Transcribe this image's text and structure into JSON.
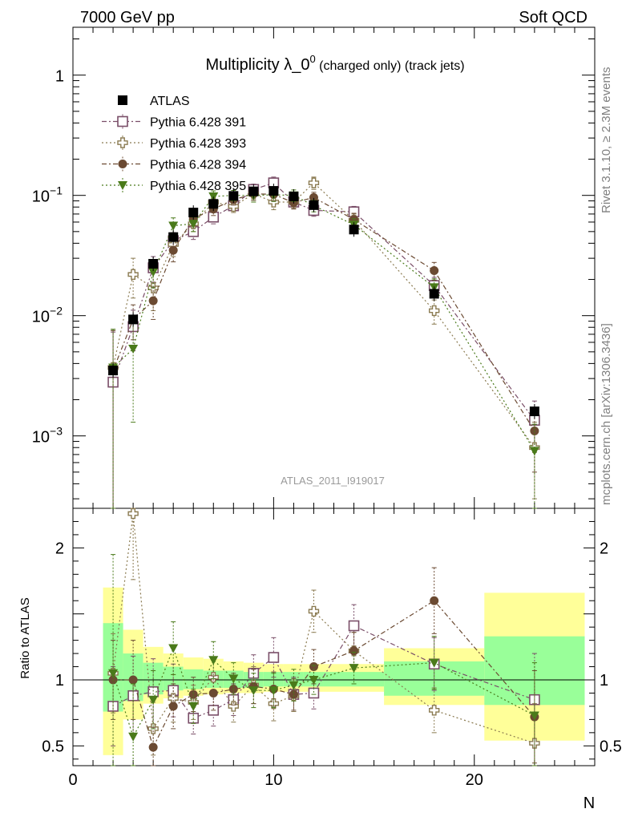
{
  "header": {
    "left": "7000 GeV pp",
    "right": "Soft QCD"
  },
  "side_labels": {
    "rivet": "Rivet 3.1.10, ≥ 2.3M events",
    "mcplots": "mcplots.cern.ch [arXiv:1306.3436]"
  },
  "chart_data": {
    "type": "scatter",
    "title_main": "Multiplicity λ_0",
    "title_sup": "0",
    "title_sub": " (charged only) (track jets)",
    "analysis_id": "ATLAS_2011_I919017",
    "xlabel": "N",
    "ylabel": "",
    "ratio_ylabel": "Ratio to ATLAS",
    "xlim": [
      0,
      26
    ],
    "ylim": [
      0.00025,
      2.5
    ],
    "yscale": "log",
    "ratio_ylim": [
      0.35,
      2.3
    ],
    "x_ticks": [
      0,
      10,
      20
    ],
    "x_tick_labels": [
      "0",
      "10",
      "20"
    ],
    "y_ticks": [
      0.001,
      0.01,
      0.1,
      1
    ],
    "y_tick_labels": [
      {
        "base": "10",
        "exp": "−3",
        "value": 0.001
      },
      {
        "base": "10",
        "exp": "−2",
        "value": 0.01
      },
      {
        "base": "10",
        "exp": "−1",
        "value": 0.1
      },
      {
        "base": "1",
        "exp": "",
        "value": 1
      }
    ],
    "ratio_ticks": [
      0.5,
      1,
      2
    ],
    "ratio_tick_labels": [
      "0.5",
      "1",
      "2"
    ],
    "legend_position": "top-left",
    "data": {
      "name": "ATLAS",
      "color": "#000000",
      "x": [
        2,
        3,
        4,
        5,
        6,
        7,
        8,
        9,
        10,
        11,
        12,
        14,
        18,
        23
      ],
      "y": [
        0.0035,
        0.0093,
        0.027,
        0.045,
        0.072,
        0.085,
        0.099,
        0.108,
        0.109,
        0.098,
        0.083,
        0.052,
        0.0152,
        0.0016
      ]
    },
    "bands": [
      {
        "x0": 1.5,
        "x1": 2.5,
        "yellow": [
          0.43,
          1.7
        ],
        "green": [
          0.76,
          1.43
        ]
      },
      {
        "x0": 2.5,
        "x1": 3.5,
        "yellow": [
          0.7,
          1.38
        ],
        "green": [
          0.84,
          1.2
        ]
      },
      {
        "x0": 3.5,
        "x1": 4.5,
        "yellow": [
          0.82,
          1.25
        ],
        "green": [
          0.89,
          1.13
        ]
      },
      {
        "x0": 4.5,
        "x1": 5.5,
        "yellow": [
          0.86,
          1.2
        ],
        "green": [
          0.92,
          1.1
        ]
      },
      {
        "x0": 5.5,
        "x1": 6.5,
        "yellow": [
          0.88,
          1.17
        ],
        "green": [
          0.93,
          1.08
        ]
      },
      {
        "x0": 6.5,
        "x1": 7.5,
        "yellow": [
          0.89,
          1.16
        ],
        "green": [
          0.94,
          1.07
        ]
      },
      {
        "x0": 7.5,
        "x1": 8.5,
        "yellow": [
          0.9,
          1.14
        ],
        "green": [
          0.94,
          1.07
        ]
      },
      {
        "x0": 8.5,
        "x1": 9.5,
        "yellow": [
          0.9,
          1.13
        ],
        "green": [
          0.94,
          1.06
        ]
      },
      {
        "x0": 9.5,
        "x1": 10.5,
        "yellow": [
          0.91,
          1.12
        ],
        "green": [
          0.95,
          1.06
        ]
      },
      {
        "x0": 10.5,
        "x1": 11.5,
        "yellow": [
          0.91,
          1.12
        ],
        "green": [
          0.95,
          1.06
        ]
      },
      {
        "x0": 11.5,
        "x1": 12.5,
        "yellow": [
          0.91,
          1.12
        ],
        "green": [
          0.95,
          1.06
        ]
      },
      {
        "x0": 12.5,
        "x1": 15.5,
        "yellow": [
          0.91,
          1.12
        ],
        "green": [
          0.95,
          1.06
        ]
      },
      {
        "x0": 15.5,
        "x1": 20.5,
        "yellow": [
          0.81,
          1.24
        ],
        "green": [
          0.88,
          1.14
        ]
      },
      {
        "x0": 20.5,
        "x1": 25.5,
        "yellow": [
          0.54,
          1.66
        ],
        "green": [
          0.81,
          1.33
        ]
      }
    ],
    "series": [
      {
        "name": "Pythia 6.428 391",
        "color": "#7a4e68",
        "marker": "open-square",
        "dash": "6,3,2,3",
        "x": [
          2,
          3,
          4,
          5,
          6,
          7,
          8,
          9,
          10,
          11,
          12,
          14,
          18,
          23
        ],
        "y": [
          0.0028,
          0.0081,
          0.025,
          0.042,
          0.05,
          0.066,
          0.082,
          0.112,
          0.127,
          0.088,
          0.075,
          0.073,
          0.0178,
          0.00135
        ],
        "ratio": [
          0.8,
          0.88,
          0.91,
          0.92,
          0.71,
          0.77,
          0.85,
          1.05,
          1.17,
          0.89,
          0.9,
          1.41,
          1.12,
          0.85
        ],
        "yerr": [
          0.0045,
          0.003,
          0.006,
          0.007,
          0.007,
          0.008,
          0.008,
          0.012,
          0.015,
          0.01,
          0.008,
          0.008,
          0.003,
          0.0006
        ],
        "ratio_err": [
          0.3,
          0.3,
          0.25,
          0.2,
          0.12,
          0.12,
          0.12,
          0.14,
          0.15,
          0.13,
          0.12,
          0.16,
          0.2,
          0.35
        ]
      },
      {
        "name": "Pythia 6.428 393",
        "color": "#8a7a50",
        "marker": "open-cross",
        "dash": "2,3",
        "x": [
          2,
          3,
          4,
          5,
          6,
          7,
          8,
          9,
          10,
          11,
          12,
          14,
          18,
          23
        ],
        "y": [
          0.0037,
          0.022,
          0.017,
          0.039,
          0.058,
          0.088,
          0.081,
          0.103,
          0.088,
          0.088,
          0.127,
          0.062,
          0.011,
          0.0008
        ],
        "ratio": [
          1.05,
          2.26,
          0.63,
          0.86,
          0.83,
          1.02,
          0.8,
          0.96,
          0.82,
          0.88,
          1.52,
          1.22,
          0.77,
          0.52
        ],
        "yerr": [
          0.004,
          0.008,
          0.006,
          0.008,
          0.008,
          0.01,
          0.009,
          0.012,
          0.012,
          0.01,
          0.015,
          0.008,
          0.0025,
          0.0005
        ],
        "ratio_err": [
          0.3,
          0.5,
          0.2,
          0.18,
          0.13,
          0.13,
          0.12,
          0.14,
          0.13,
          0.12,
          0.16,
          0.14,
          0.17,
          0.3
        ]
      },
      {
        "name": "Pythia 6.428 394",
        "color": "#6b4a32",
        "marker": "filled-circle",
        "dash": "6,3,2,3",
        "x": [
          2,
          3,
          4,
          5,
          6,
          7,
          8,
          9,
          10,
          11,
          12,
          14,
          18,
          23
        ],
        "y": [
          0.0035,
          0.0093,
          0.0133,
          0.035,
          0.064,
          0.077,
          0.092,
          0.103,
          0.102,
          0.087,
          0.096,
          0.063,
          0.0237,
          0.0011
        ],
        "ratio": [
          1.0,
          1.0,
          0.49,
          0.8,
          0.89,
          0.9,
          0.93,
          0.95,
          0.93,
          0.89,
          1.1,
          1.22,
          1.6,
          0.72
        ],
        "yerr": [
          0.004,
          0.003,
          0.004,
          0.007,
          0.008,
          0.009,
          0.009,
          0.012,
          0.012,
          0.01,
          0.01,
          0.008,
          0.004,
          0.0006
        ],
        "ratio_err": [
          0.3,
          0.3,
          0.15,
          0.17,
          0.13,
          0.13,
          0.12,
          0.13,
          0.13,
          0.12,
          0.13,
          0.14,
          0.25,
          0.35
        ]
      },
      {
        "name": "Pythia 6.428 395",
        "color": "#4a7a1a",
        "marker": "filled-triangle-down",
        "dash": "2,3",
        "x": [
          2,
          3,
          4,
          5,
          6,
          7,
          8,
          9,
          10,
          11,
          12,
          14,
          18,
          23
        ],
        "y": [
          0.0037,
          0.0053,
          0.023,
          0.056,
          0.058,
          0.098,
          0.1,
          0.1,
          0.101,
          0.1,
          0.082,
          0.057,
          0.0172,
          0.00075
        ],
        "ratio": [
          1.05,
          0.57,
          0.85,
          1.24,
          0.8,
          1.15,
          1.01,
          0.92,
          0.92,
          0.96,
          1.0,
          1.09,
          1.13,
          0.73
        ],
        "yerr": [
          0.004,
          0.004,
          0.006,
          0.009,
          0.008,
          0.011,
          0.01,
          0.012,
          0.012,
          0.011,
          0.009,
          0.007,
          0.003,
          0.0005
        ],
        "ratio_err": [
          0.9,
          0.4,
          0.22,
          0.2,
          0.13,
          0.14,
          0.12,
          0.13,
          0.13,
          0.12,
          0.11,
          0.12,
          0.2,
          0.4
        ]
      }
    ]
  }
}
